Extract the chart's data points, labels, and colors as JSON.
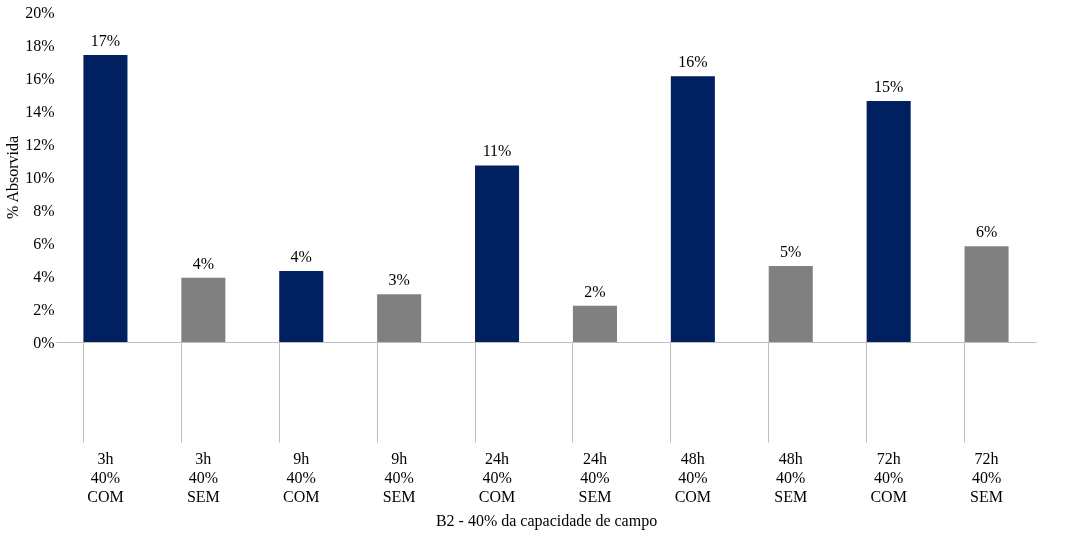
{
  "chart_data": {
    "type": "bar",
    "xlabel": "B2 - 40% da capacidade de campo",
    "ylabel": "% Absorvida",
    "categories": [
      "3h\n40%\nCOM",
      "3h\n40%\nSEM",
      "9h\n40%\nCOM",
      "9h\n40%\nSEM",
      "24h\n40%\nCOM",
      "24h\n40%\nSEM",
      "48h\n40%\nCOM",
      "48h\n40%\nSEM",
      "72h\n40%\nCOM",
      "72h\n40%\nSEM"
    ],
    "values": [
      17.4,
      3.9,
      4.3,
      2.9,
      10.7,
      2.2,
      16.1,
      4.6,
      14.6,
      5.8
    ],
    "colors": [
      "#002060",
      "#808080",
      "#002060",
      "#808080",
      "#002060",
      "#808080",
      "#002060",
      "#808080",
      "#002060",
      "#808080"
    ],
    "value_labels": [
      "17%",
      "4%",
      "4%",
      "3%",
      "11%",
      "2%",
      "16%",
      "5%",
      "15%",
      "6%"
    ],
    "ylim": [
      0,
      20
    ],
    "yticks": [
      {
        "value": 0,
        "label": "0%"
      },
      {
        "value": 2,
        "label": "2%"
      },
      {
        "value": 4,
        "label": "4%"
      },
      {
        "value": 6,
        "label": "6%"
      },
      {
        "value": 8,
        "label": "8%"
      },
      {
        "value": 10,
        "label": "10%"
      },
      {
        "value": 12,
        "label": "12%"
      },
      {
        "value": 14,
        "label": "14%"
      },
      {
        "value": 16,
        "label": "16%"
      },
      {
        "value": 18,
        "label": "18%"
      },
      {
        "value": 20,
        "label": "20%"
      }
    ],
    "grid": false
  }
}
